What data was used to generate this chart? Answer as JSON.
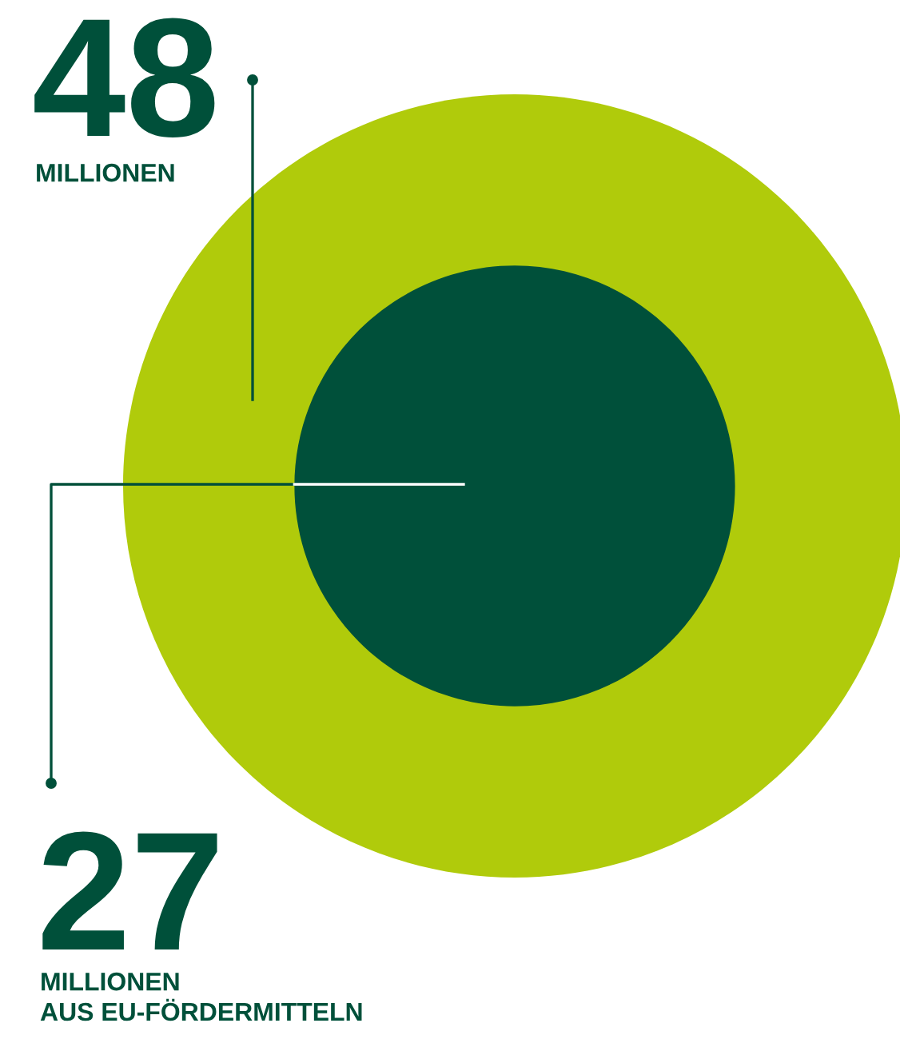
{
  "chart_data": {
    "type": "other",
    "categories": [
      "MILLIONEN",
      "MILLIONEN\nAUS EU-FÖRDERMITTELN"
    ],
    "values": [
      48,
      27
    ],
    "value_labels": [
      "48",
      "27"
    ],
    "colors": [
      "#b0cb0b",
      "#00503a"
    ]
  }
}
